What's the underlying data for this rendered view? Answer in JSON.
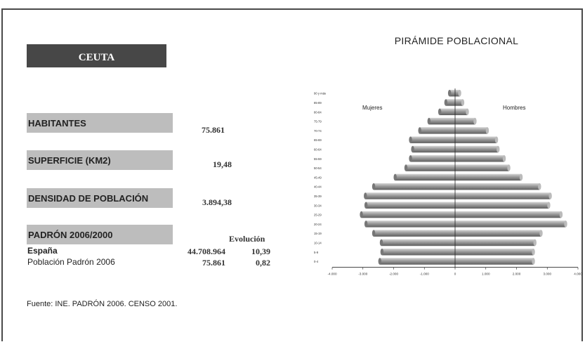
{
  "region": {
    "name": "CEUTA"
  },
  "stats": {
    "habitantes": {
      "label": "HABITANTES",
      "value": "75.861"
    },
    "superficie": {
      "label": "SUPERFICIE (KM2)",
      "value": "19,48"
    },
    "densidad": {
      "label": "DENSIDAD DE POBLACIÓN",
      "value": "3.894,38"
    }
  },
  "padron": {
    "label": "PADRÓN 2006/2000",
    "evolucion_header": "Evolución",
    "rows": [
      {
        "name": "España",
        "value": "44.708.964",
        "evolucion": "10,39"
      },
      {
        "name": "Población Padrón 2006",
        "value": "75.861",
        "evolucion": "0,82"
      }
    ]
  },
  "source": "Fuente: INE. PADRÓN 2006. CENSO 2001.",
  "chart_data": {
    "type": "bar",
    "orientation": "horizontal",
    "title": "PIRÁMIDE POBLACIONAL",
    "series_labels": {
      "left": "Mujeres",
      "right": "Hombres"
    },
    "categories": [
      "0-4",
      "5-9",
      "10-14",
      "15-19",
      "20-24",
      "25-29",
      "30-34",
      "35-39",
      "40-44",
      "45-49",
      "50-54",
      "55-59",
      "60-64",
      "65-69",
      "70-74",
      "75-79",
      "80-84",
      "85-89",
      "90 y más"
    ],
    "mujeres": [
      2450,
      2380,
      2400,
      2650,
      2900,
      3050,
      2900,
      2920,
      2650,
      1950,
      1600,
      1450,
      1380,
      1450,
      1150,
      850,
      500,
      300,
      180
    ],
    "hombres": [
      2550,
      2550,
      2600,
      2800,
      3600,
      3450,
      3050,
      3100,
      2750,
      2150,
      1750,
      1600,
      1400,
      1350,
      1050,
      650,
      400,
      250,
      150
    ],
    "xlim": [
      -4000,
      4000
    ],
    "xticks": [
      "-4.000",
      "-3.000",
      "-2.000",
      "-1.000",
      "0",
      "1.000",
      "2.000",
      "3.000",
      "4.000"
    ],
    "bar_color": "#8f8f8f",
    "grid": false
  }
}
